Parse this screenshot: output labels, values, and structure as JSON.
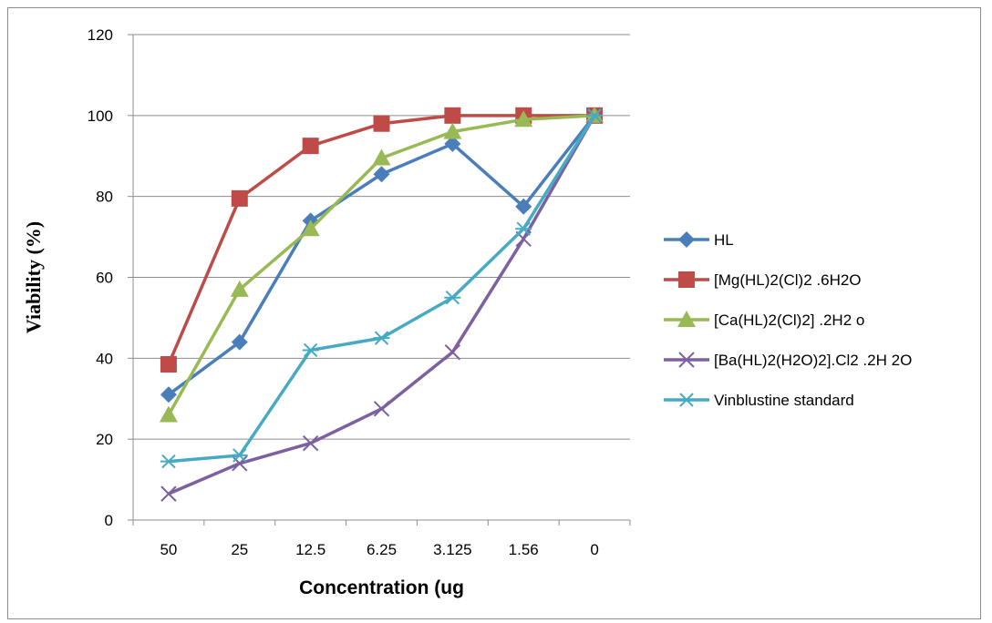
{
  "chart_data": {
    "type": "line",
    "title": "",
    "xlabel": "Concentration (ug",
    "ylabel": "Viability (%)",
    "categories": [
      "50",
      "25",
      "12.5",
      "6.25",
      "3.125",
      "1.56",
      "0"
    ],
    "ylim": [
      0,
      120
    ],
    "yticks": [
      0,
      20,
      40,
      60,
      80,
      100,
      120
    ],
    "grid": "horizontal",
    "legend_position": "right",
    "series": [
      {
        "name": "HL",
        "color": "#4a7ebb",
        "marker": "diamond",
        "values": [
          31,
          44,
          74,
          85.5,
          93,
          77.5,
          100
        ]
      },
      {
        "name": "[Mg(HL)2(Cl)2 .6H2O",
        "color": "#be4b48",
        "marker": "square",
        "values": [
          38.5,
          79.5,
          92.5,
          98,
          100,
          100,
          100
        ]
      },
      {
        "name": "[Ca(HL)2(Cl)2] .2H2 o",
        "color": "#98b954",
        "marker": "triangle",
        "values": [
          26,
          57,
          72,
          89.5,
          96,
          99,
          100
        ]
      },
      {
        "name": "[Ba(HL)2(H2O)2].Cl2 .2H 2O",
        "color": "#7d60a0",
        "marker": "x",
        "values": [
          6.5,
          14,
          19,
          27.5,
          41.5,
          69.5,
          100
        ]
      },
      {
        "name": "Vinblustine standard",
        "color": "#46aac5",
        "marker": "star",
        "values": [
          14.5,
          16,
          42,
          45,
          55,
          72,
          100
        ]
      }
    ]
  }
}
